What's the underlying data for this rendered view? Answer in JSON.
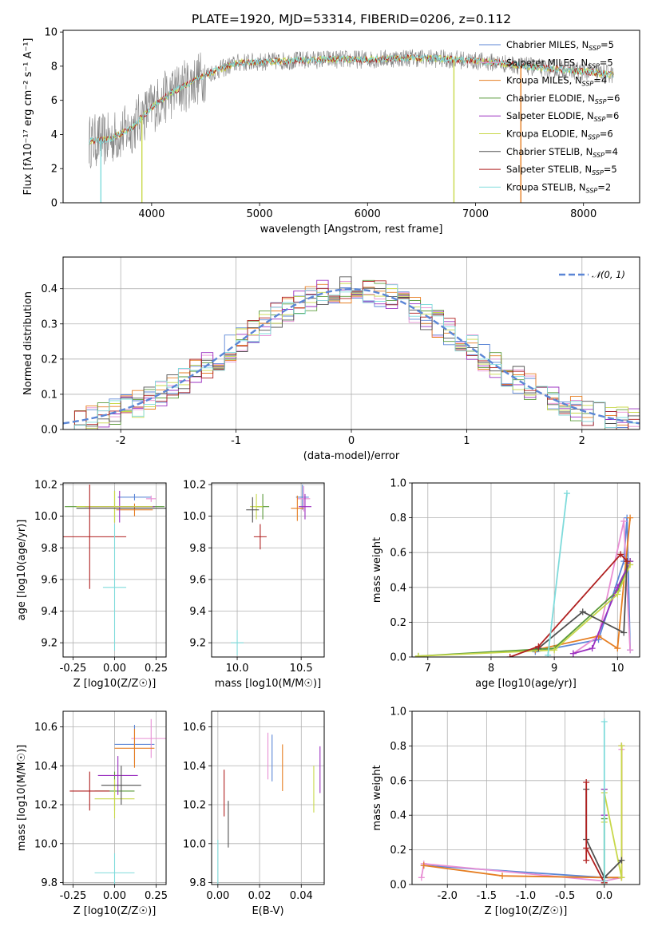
{
  "figure": {
    "title": "PLATE=1920, MJD=53314, FIBERID=0206, z=0.112"
  },
  "colors": {
    "Chabrier MILES": "#5b86d6",
    "Salpeter MILES": "#e88fd4",
    "Kroupa MILES": "#e67e22",
    "Chabrier ELODIE": "#5a9a3a",
    "Salpeter ELODIE": "#9b30c0",
    "Kroupa ELODIE": "#c8d84a",
    "Chabrier STELIB": "#505050",
    "Salpeter STELIB": "#b02020",
    "Kroupa STELIB": "#7fdbdb",
    "gaussian": "#5b86d6"
  },
  "chart_data": [
    {
      "type": "line",
      "panel": "spectrum",
      "title": "PLATE=1920, MJD=53314, FIBERID=0206, z=0.112",
      "xlabel": "wavelength [Angstrom, rest frame]",
      "ylabel": "Flux [fλ10⁻¹⁷ erg cm⁻² s⁻¹ A⁻¹]",
      "xlim": [
        3180,
        8520
      ],
      "ylim": [
        0,
        10.1
      ],
      "xticks": [
        4000,
        5000,
        6000,
        7000,
        8000
      ],
      "yticks": [
        0,
        2,
        4,
        6,
        8,
        10
      ],
      "legend_position": "right",
      "legend": [
        "Chabrier MILES, N_SSP=5",
        "Salpeter MILES, N_SSP=5",
        "Kroupa MILES, N_SSP=4",
        "Chabrier ELODIE, N_SSP=6",
        "Salpeter ELODIE, N_SSP=6",
        "Kroupa ELODIE, N_SSP=6",
        "Chabrier STELIB, N_SSP=4",
        "Salpeter STELIB, N_SSP=5",
        "Kroupa STELIB, N_SSP=2"
      ],
      "legend_text": [
        {
          "a": "Chabrier MILES, N",
          "b": "SSP",
          "c": "=5"
        },
        {
          "a": "Salpeter MILES, N",
          "b": "SSP",
          "c": "=5"
        },
        {
          "a": "Kroupa MILES, N",
          "b": "SSP",
          "c": "=4"
        },
        {
          "a": "Chabrier ELODIE, N",
          "b": "SSP",
          "c": "=6"
        },
        {
          "a": "Salpeter ELODIE, N",
          "b": "SSP",
          "c": "=6"
        },
        {
          "a": "Kroupa ELODIE, N",
          "b": "SSP",
          "c": "=6"
        },
        {
          "a": "Chabrier STELIB, N",
          "b": "SSP",
          "c": "=4"
        },
        {
          "a": "Salpeter STELIB, N",
          "b": "SSP",
          "c": "=5"
        },
        {
          "a": "Kroupa STELIB, N",
          "b": "SSP",
          "c": "=2"
        }
      ],
      "continuum": {
        "x": [
          3420,
          3600,
          3800,
          4000,
          4200,
          4500,
          4800,
          5200,
          5600,
          6000,
          6400,
          6800,
          7200,
          7600,
          8000,
          8280
        ],
        "y": [
          3.6,
          3.7,
          4.3,
          5.6,
          6.5,
          7.5,
          8.2,
          8.3,
          8.4,
          8.4,
          8.5,
          8.4,
          8.2,
          7.9,
          7.7,
          7.5
        ]
      },
      "spikes": [
        {
          "x": 3530,
          "to": 0
        },
        {
          "x": 3910,
          "to": 0
        },
        {
          "x": 6800,
          "to": 0
        },
        {
          "x": 7420,
          "to": 0
        }
      ]
    },
    {
      "type": "line",
      "panel": "residuals",
      "xlabel": "(data-model)/error",
      "ylabel": "Normed distribution",
      "xlim": [
        -2.5,
        2.5
      ],
      "ylim": [
        0,
        0.49
      ],
      "xticks": [
        -2,
        -1,
        0,
        1,
        2
      ],
      "yticks": [
        0.0,
        0.1,
        0.2,
        0.3,
        0.4
      ],
      "legend": [
        "𝒩(0, 1)"
      ],
      "gaussian": {
        "mean": 0,
        "sigma": 1
      },
      "bin_width": 0.1,
      "bin_start": -2.5
    },
    {
      "type": "scatter",
      "panel": "age_vs_Z",
      "xlabel": "Z [log10(Z/Z☉)]",
      "ylabel": "age  [log10(age/yr)]",
      "xlim": [
        -0.31,
        0.31
      ],
      "ylim": [
        9.11,
        10.21
      ],
      "xticks": [
        -0.25,
        0.0,
        0.25
      ],
      "yticks": [
        9.2,
        9.4,
        9.6,
        9.8,
        10.0,
        10.2
      ],
      "points": [
        {
          "model": "Chabrier MILES",
          "x": 0.12,
          "xerr": 0.1,
          "y": 10.12,
          "yerr": 0.02
        },
        {
          "model": "Salpeter MILES",
          "x": 0.22,
          "xerr": 0.03,
          "y": 10.11,
          "yerr": 0.02
        },
        {
          "model": "Kroupa MILES",
          "x": 0.12,
          "xerr": 0.11,
          "y": 10.04,
          "yerr": 0.04
        },
        {
          "model": "Chabrier ELODIE",
          "x": 0.0,
          "xerr": 0.3,
          "y": 10.06,
          "yerr": 0.1
        },
        {
          "model": "Salpeter ELODIE",
          "x": 0.03,
          "xerr": 0.21,
          "y": 10.06,
          "yerr": 0.1
        },
        {
          "model": "Kroupa ELODIE",
          "x": 0.0,
          "xerr": 0.23,
          "y": 10.06,
          "yerr": 0.1
        },
        {
          "model": "Chabrier STELIB",
          "x": 0.04,
          "xerr": 0.27,
          "y": 10.05,
          "yerr": 0.0
        },
        {
          "model": "Salpeter STELIB",
          "x": -0.15,
          "xerr": 0.22,
          "y": 9.87,
          "yerr": 0.33
        },
        {
          "model": "Kroupa STELIB",
          "x": 0.0,
          "xerr": 0.07,
          "y": 9.55,
          "yerr": 0.4
        }
      ]
    },
    {
      "type": "scatter",
      "panel": "age_vs_mass",
      "xlabel": "mass [log10(M/M☉)]",
      "ylabel": "",
      "xlim": [
        9.8,
        10.68
      ],
      "ylim": [
        9.11,
        10.21
      ],
      "xticks": [
        10.0,
        10.5
      ],
      "yticks": [
        9.2,
        9.4,
        9.6,
        9.8,
        10.0,
        10.2
      ],
      "points": [
        {
          "model": "Chabrier MILES",
          "x": 10.51,
          "y": 10.12
        },
        {
          "model": "Salpeter MILES",
          "x": 10.52,
          "y": 10.11
        },
        {
          "model": "Kroupa MILES",
          "x": 10.47,
          "y": 10.05
        },
        {
          "model": "Chabrier ELODIE",
          "x": 10.2,
          "y": 10.06
        },
        {
          "model": "Salpeter ELODIE",
          "x": 10.53,
          "y": 10.06
        },
        {
          "model": "Kroupa ELODIE",
          "x": 10.15,
          "y": 10.06
        },
        {
          "model": "Chabrier STELIB",
          "x": 10.12,
          "y": 10.04
        },
        {
          "model": "Salpeter STELIB",
          "x": 10.18,
          "y": 9.87
        },
        {
          "model": "Kroupa STELIB",
          "x": 10.0,
          "y": 9.2
        }
      ]
    },
    {
      "type": "line",
      "panel": "mass_weight_vs_age",
      "xlabel": "age  [log10(age/yr)]",
      "ylabel": "mass weight",
      "xlim": [
        6.75,
        10.35
      ],
      "ylim": [
        0,
        1.0
      ],
      "xticks": [
        7,
        8,
        9,
        10
      ],
      "yticks": [
        0.0,
        0.2,
        0.4,
        0.6,
        0.8,
        1.0
      ],
      "series": [
        {
          "name": "Chabrier MILES",
          "x": [
            8.7,
            9.7,
            10.1,
            10.15,
            10.2
          ],
          "y": [
            0.03,
            0.1,
            0.55,
            0.8,
            0.04
          ]
        },
        {
          "name": "Salpeter MILES",
          "x": [
            9.3,
            9.7,
            10.1,
            10.2
          ],
          "y": [
            0.02,
            0.12,
            0.78,
            0.04
          ]
        },
        {
          "name": "Kroupa MILES",
          "x": [
            8.7,
            9.7,
            10.0,
            10.2
          ],
          "y": [
            0.04,
            0.12,
            0.05,
            0.8
          ]
        },
        {
          "name": "Chabrier ELODIE",
          "x": [
            6.85,
            9.0,
            10.0,
            10.2
          ],
          "y": [
            0.005,
            0.05,
            0.38,
            0.55
          ]
        },
        {
          "name": "Salpeter ELODIE",
          "x": [
            9.3,
            9.6,
            10.0,
            10.2
          ],
          "y": [
            0.02,
            0.05,
            0.4,
            0.55
          ]
        },
        {
          "name": "Kroupa ELODIE",
          "x": [
            6.85,
            9.0,
            10.0,
            10.2
          ],
          "y": [
            0.005,
            0.04,
            0.36,
            0.53
          ]
        },
        {
          "name": "Chabrier STELIB",
          "x": [
            8.75,
            9.45,
            10.1,
            10.15
          ],
          "y": [
            0.05,
            0.26,
            0.14,
            0.55
          ]
        },
        {
          "name": "Salpeter STELIB",
          "x": [
            8.3,
            8.75,
            10.05,
            10.15
          ],
          "y": [
            0.0,
            0.06,
            0.59,
            0.55
          ]
        },
        {
          "name": "Kroupa STELIB",
          "x": [
            8.9,
            9.2
          ],
          "y": [
            0.01,
            0.94
          ]
        }
      ]
    },
    {
      "type": "scatter",
      "panel": "mass_vs_Z",
      "xlabel": "Z [log10(Z/Z☉)]",
      "ylabel": "mass [log10(M/M☉)]",
      "xlim": [
        -0.31,
        0.31
      ],
      "ylim": [
        9.79,
        10.68
      ],
      "xticks": [
        -0.25,
        0.0,
        0.25
      ],
      "yticks": [
        9.8,
        10.0,
        10.2,
        10.4,
        10.6
      ],
      "points": [
        {
          "model": "Chabrier MILES",
          "x": 0.12,
          "y": 10.51
        },
        {
          "model": "Salpeter MILES",
          "x": 0.22,
          "y": 10.54
        },
        {
          "model": "Kroupa MILES",
          "x": 0.12,
          "y": 10.49
        },
        {
          "model": "Chabrier ELODIE",
          "x": 0.0,
          "y": 10.27
        },
        {
          "model": "Salpeter ELODIE",
          "x": 0.02,
          "y": 10.35
        },
        {
          "model": "Kroupa ELODIE",
          "x": 0.0,
          "y": 10.23
        },
        {
          "model": "Chabrier STELIB",
          "x": 0.04,
          "y": 10.3
        },
        {
          "model": "Salpeter STELIB",
          "x": -0.15,
          "y": 10.27
        },
        {
          "model": "Kroupa STELIB",
          "x": 0.0,
          "y": 9.85
        }
      ]
    },
    {
      "type": "scatter",
      "panel": "mass_vs_EBV",
      "xlabel": "E(B-V)",
      "ylabel": "",
      "xlim": [
        -0.003,
        0.051
      ],
      "ylim": [
        9.79,
        10.68
      ],
      "xticks": [
        0.0,
        0.02,
        0.04
      ],
      "yticks": [
        9.8,
        10.0,
        10.2,
        10.4,
        10.6
      ],
      "points": [
        {
          "model": "Salpeter STELIB",
          "x": 0.003,
          "y": 10.26
        },
        {
          "model": "Chabrier STELIB",
          "x": 0.005,
          "y": 10.1
        },
        {
          "model": "Kroupa STELIB",
          "x": 0.0,
          "y": 9.9
        },
        {
          "model": "Salpeter MILES",
          "x": 0.024,
          "y": 10.45
        },
        {
          "model": "Chabrier MILES",
          "x": 0.026,
          "y": 10.44
        },
        {
          "model": "Kroupa MILES",
          "x": 0.031,
          "y": 10.39
        },
        {
          "model": "Kroupa ELODIE",
          "x": 0.046,
          "y": 10.28
        },
        {
          "model": "Salpeter ELODIE",
          "x": 0.049,
          "y": 10.38
        }
      ]
    },
    {
      "type": "line",
      "panel": "mass_weight_vs_Z",
      "xlabel": "Z [log10(Z/Z☉)]",
      "ylabel": "mass weight",
      "xlim": [
        -2.45,
        0.45
      ],
      "ylim": [
        0,
        1.0
      ],
      "xticks": [
        -2.0,
        -1.5,
        -1.0,
        -0.5,
        0.0
      ],
      "yticks": [
        0.0,
        0.2,
        0.4,
        0.6,
        0.8,
        1.0
      ],
      "series": [
        {
          "name": "Chabrier MILES",
          "x": [
            -2.3,
            0.0,
            0.22,
            0.22
          ],
          "y": [
            0.11,
            0.04,
            0.04,
            0.8
          ]
        },
        {
          "name": "Salpeter MILES",
          "x": [
            -2.33,
            -2.3,
            0.0,
            0.22,
            0.22
          ],
          "y": [
            0.04,
            0.12,
            0.02,
            0.04,
            0.78
          ]
        },
        {
          "name": "Kroupa MILES",
          "x": [
            -2.3,
            -1.3,
            0.0,
            0.22,
            0.22
          ],
          "y": [
            0.11,
            0.05,
            0.04,
            0.04,
            0.8
          ]
        },
        {
          "name": "Chabrier ELODIE",
          "x": [
            0.0,
            0.0,
            0.0
          ],
          "y": [
            0.38,
            0.55,
            0.0
          ]
        },
        {
          "name": "Salpeter ELODIE",
          "x": [
            0.0,
            0.0
          ],
          "y": [
            0.4,
            0.55
          ]
        },
        {
          "name": "Kroupa ELODIE",
          "x": [
            0.0,
            0.0,
            0.22,
            0.22
          ],
          "y": [
            0.36,
            0.53,
            0.04,
            0.8
          ]
        },
        {
          "name": "Chabrier STELIB",
          "x": [
            -0.23,
            -0.23,
            0.0,
            0.22
          ],
          "y": [
            0.55,
            0.26,
            0.04,
            0.14
          ]
        },
        {
          "name": "Salpeter STELIB",
          "x": [
            -0.23,
            -0.23,
            -0.23,
            0.0
          ],
          "y": [
            0.14,
            0.59,
            0.21,
            0.01
          ]
        },
        {
          "name": "Kroupa STELIB",
          "x": [
            0.0,
            0.0
          ],
          "y": [
            0.02,
            0.94
          ]
        }
      ]
    }
  ]
}
